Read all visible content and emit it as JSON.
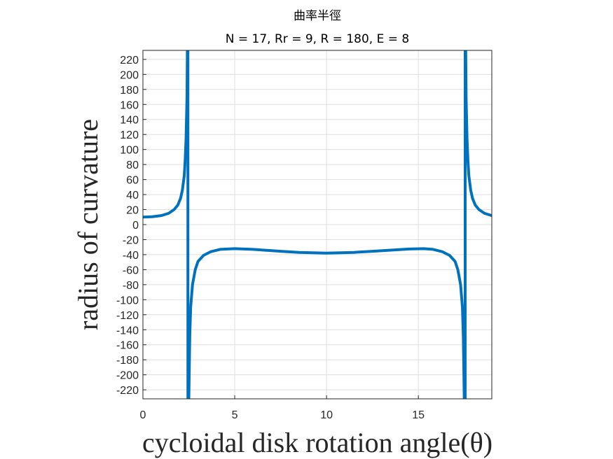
{
  "chart_data": {
    "type": "line",
    "title": "曲率半徑",
    "subtitle": "N = 17, Rr = 9, R = 180, E = 8",
    "xlabel": "cycloidal disk rotation angle(θ)",
    "ylabel": "radius of curvature",
    "xlim": [
      0,
      19
    ],
    "ylim": [
      -232,
      232
    ],
    "xticks": [
      0,
      5,
      10,
      15
    ],
    "xtick_labels": [
      "0",
      "5",
      "10",
      "15"
    ],
    "yticks": [
      220,
      200,
      180,
      160,
      140,
      120,
      100,
      80,
      60,
      40,
      20,
      0,
      -20,
      -40,
      -60,
      -80,
      -100,
      -120,
      -140,
      -160,
      -180,
      -200,
      -220
    ],
    "ytick_labels": [
      "220",
      "200",
      "180",
      "160",
      "140",
      "120",
      "100",
      "80",
      "60",
      "40",
      "20",
      "0",
      "-20",
      "-40",
      "-60",
      "-80",
      "-100",
      "-120",
      "-140",
      "-160",
      "-180",
      "-200",
      "-220"
    ],
    "grid": true,
    "line_color": "#0072BD",
    "series": [
      {
        "segments": [
          [
            [
              0,
              10
            ],
            [
              0.5,
              10.5
            ],
            [
              1.0,
              12
            ],
            [
              1.4,
              15
            ],
            [
              1.7,
              20
            ],
            [
              1.9,
              26
            ],
            [
              2.05,
              35
            ],
            [
              2.15,
              46
            ],
            [
              2.25,
              65
            ],
            [
              2.3,
              85
            ],
            [
              2.35,
              115
            ],
            [
              2.4,
              170
            ],
            [
              2.42,
              232
            ]
          ],
          [
            [
              2.45,
              232
            ],
            [
              2.45,
              -232
            ]
          ],
          [
            [
              2.5,
              -232
            ],
            [
              2.55,
              -150
            ],
            [
              2.6,
              -110
            ],
            [
              2.7,
              -80
            ],
            [
              2.85,
              -60
            ],
            [
              3.0,
              -49
            ],
            [
              3.3,
              -41
            ],
            [
              3.7,
              -36
            ],
            [
              4.2,
              -33
            ],
            [
              5.0,
              -32
            ],
            [
              6.0,
              -33
            ],
            [
              7.5,
              -35.5
            ],
            [
              8.5,
              -37
            ],
            [
              10.0,
              -38
            ],
            [
              11.5,
              -37
            ],
            [
              12.5,
              -35.5
            ],
            [
              13.5,
              -34
            ],
            [
              14.5,
              -32.5
            ],
            [
              15.3,
              -32
            ],
            [
              15.8,
              -33
            ],
            [
              16.3,
              -36
            ],
            [
              16.7,
              -41
            ],
            [
              17.0,
              -49
            ],
            [
              17.15,
              -60
            ],
            [
              17.3,
              -80
            ],
            [
              17.4,
              -110
            ],
            [
              17.45,
              -150
            ],
            [
              17.5,
              -232
            ]
          ],
          [
            [
              17.55,
              -232
            ],
            [
              17.55,
              232
            ]
          ],
          [
            [
              17.58,
              232
            ],
            [
              17.6,
              170
            ],
            [
              17.65,
              115
            ],
            [
              17.7,
              85
            ],
            [
              17.75,
              65
            ],
            [
              17.85,
              46
            ],
            [
              17.95,
              35
            ],
            [
              18.1,
              26
            ],
            [
              18.3,
              20
            ],
            [
              18.6,
              15
            ],
            [
              19.0,
              12
            ]
          ]
        ]
      }
    ]
  }
}
